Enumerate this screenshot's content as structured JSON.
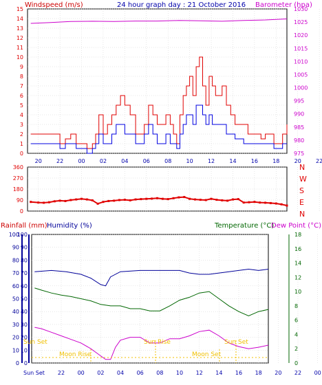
{
  "header": {
    "left_label": "Windspeed (m/s)",
    "center_title": "24 hour graph day : 21 October 2016",
    "right_label": "Barometer (hpa)"
  },
  "colors": {
    "wind_gust": "#e00000",
    "wind_avg": "#0000e0",
    "barometer": "#cc00cc",
    "direction": "#e00000",
    "humidity": "#000099",
    "temperature": "#006600",
    "dewpoint": "#cc00cc",
    "rainfall": "#cc0000",
    "sun_moon": "#f0c000",
    "axis": "#0000aa",
    "grid": "#cfcfcf"
  },
  "time_ticks": [
    "20",
    "22",
    "00",
    "02",
    "04",
    "06",
    "08",
    "10",
    "12",
    "14",
    "16",
    "18",
    "20",
    "22",
    "00"
  ],
  "chart_data": [
    {
      "type": "line",
      "x_unit": "hour",
      "x_range": [
        19,
        43
      ],
      "ylim_left": [
        0,
        15
      ],
      "ylim_right": [
        975,
        1030
      ],
      "yticks_left": [
        "0",
        "1",
        "2",
        "3",
        "4",
        "5",
        "6",
        "7",
        "8",
        "9",
        "10",
        "11",
        "12",
        "13",
        "14",
        "15"
      ],
      "yticks_right": [
        "975",
        "980",
        "985",
        "990",
        "995",
        "1000",
        "1005",
        "1010",
        "1015",
        "1020",
        "1025",
        "1030"
      ],
      "grid": true,
      "series": [
        {
          "name": "Windspeed (m/s)",
          "color": "#e00000",
          "x": [
            19.3,
            20,
            20.8,
            21.5,
            22,
            22.5,
            23,
            23.5,
            24,
            24.5,
            25,
            25.3,
            25.6,
            26,
            26.4,
            26.8,
            27.2,
            27.6,
            28,
            28.5,
            29,
            29.4,
            29.8,
            30.2,
            30.6,
            31,
            31.4,
            31.8,
            32.2,
            32.5,
            32.8,
            33.1,
            33.4,
            33.7,
            34,
            34.3,
            34.6,
            34.9,
            35.2,
            35.5,
            35.8,
            36.1,
            36.4,
            36.7,
            37,
            37.4,
            37.8,
            38.2,
            38.6,
            39,
            39.4,
            39.8,
            40.2,
            40.6,
            41,
            41.4,
            41.8,
            42.2,
            42.6,
            43
          ],
          "values": [
            2,
            2,
            2,
            2,
            1,
            1.5,
            2,
            1,
            1,
            0.5,
            1,
            2,
            4,
            2,
            3,
            4,
            5,
            6,
            5,
            4,
            2,
            2,
            3,
            5,
            4,
            3,
            3,
            4,
            3,
            2,
            1,
            4,
            6,
            7,
            8,
            6,
            9,
            10,
            7,
            5,
            8,
            7,
            6,
            6,
            7,
            5,
            4,
            3,
            3,
            3,
            2,
            2,
            2,
            1.5,
            2,
            2,
            1,
            1,
            2,
            3
          ]
        },
        {
          "name": "Wind average",
          "color": "#0000e0",
          "x": [
            19.3,
            20,
            20.8,
            21.5,
            22,
            22.5,
            23,
            23.5,
            24,
            24.5,
            25,
            25.3,
            25.6,
            26,
            26.4,
            26.8,
            27.2,
            27.6,
            28,
            28.5,
            29,
            29.4,
            29.8,
            30.2,
            30.6,
            31,
            31.4,
            31.8,
            32.2,
            32.5,
            32.8,
            33.1,
            33.4,
            33.7,
            34,
            34.3,
            34.6,
            34.9,
            35.2,
            35.5,
            35.8,
            36.1,
            36.4,
            36.7,
            37,
            37.4,
            37.8,
            38.2,
            38.6,
            39,
            39.4,
            39.8,
            40.2,
            40.6,
            41,
            41.4,
            41.8,
            42.2,
            42.6,
            43
          ],
          "values": [
            1,
            1,
            1,
            1,
            0.5,
            1,
            1,
            0.5,
            0.5,
            0,
            0.5,
            1,
            2,
            1,
            1,
            2,
            3,
            3,
            2,
            2,
            1,
            1,
            2,
            3,
            2,
            1,
            1,
            2,
            1,
            1,
            0.5,
            2,
            3,
            4,
            4,
            3,
            5,
            5,
            4,
            3,
            4,
            3,
            3,
            3,
            3,
            2,
            2,
            1.5,
            1.5,
            1,
            1,
            1,
            1,
            1,
            1,
            1,
            0.5,
            0.5,
            1,
            1
          ]
        },
        {
          "name": "Barometer (hpa)",
          "color": "#cc00cc",
          "axis": "right",
          "x": [
            19.3,
            21,
            23,
            25,
            27,
            29,
            31,
            33,
            35,
            37,
            39,
            41,
            43
          ],
          "values": [
            1024.5,
            1024.8,
            1025.2,
            1025.3,
            1025.2,
            1025.4,
            1025.4,
            1025.6,
            1025.5,
            1025.3,
            1025.6,
            1025.8,
            1026.2
          ]
        }
      ]
    },
    {
      "type": "scatter",
      "x_unit": "hour",
      "x_range": [
        19,
        43
      ],
      "ylim": [
        0,
        360
      ],
      "yticks": [
        "0",
        "90",
        "180",
        "270",
        "360"
      ],
      "compass_labels": [
        "N",
        "W",
        "S",
        "E",
        "N"
      ],
      "grid": true,
      "series": [
        {
          "name": "Wind direction",
          "color": "#e00000",
          "x": [
            19.3,
            20,
            20.5,
            21,
            21.5,
            22,
            22.5,
            23,
            23.5,
            24,
            24.5,
            25,
            25.5,
            26,
            26.5,
            27,
            27.5,
            28,
            28.5,
            29,
            29.5,
            30,
            30.5,
            31,
            31.5,
            32,
            32.5,
            33,
            33.5,
            34,
            34.5,
            35,
            35.5,
            36,
            36.5,
            37,
            37.5,
            38,
            38.5,
            39,
            39.5,
            40,
            40.5,
            41,
            41.5,
            42,
            42.5,
            43
          ],
          "values": [
            75,
            70,
            68,
            72,
            80,
            85,
            82,
            90,
            95,
            100,
            95,
            88,
            60,
            75,
            82,
            85,
            90,
            92,
            88,
            95,
            98,
            100,
            102,
            105,
            100,
            98,
            105,
            112,
            115,
            100,
            95,
            92,
            90,
            100,
            92,
            88,
            85,
            95,
            98,
            70,
            72,
            75,
            70,
            68,
            65,
            62,
            55,
            45
          ]
        }
      ]
    },
    {
      "type": "line",
      "x_unit": "hour",
      "x_range": [
        19,
        43
      ],
      "ylim_left": [
        0,
        100
      ],
      "ylim_right": [
        0,
        18
      ],
      "yticks_left": [
        "0",
        "10",
        "20",
        "30",
        "40",
        "50",
        "60",
        "70",
        "80",
        "90",
        "100"
      ],
      "yticks_right": [
        "0",
        "2",
        "4",
        "6",
        "8",
        "10",
        "12",
        "14",
        "16",
        "18"
      ],
      "grid": true,
      "left_label_1": "Rainfall (mm)",
      "left_label_2": "Humidity (%)",
      "right_label_1": "Temperature (°C)",
      "right_label_2": "Dew Point (°C)",
      "series": [
        {
          "name": "Humidity (%)",
          "color": "#000099",
          "x": [
            19.3,
            21,
            22.5,
            24,
            25,
            26,
            26.5,
            27,
            28,
            30,
            32,
            34,
            35,
            36,
            37,
            38,
            39,
            40,
            41,
            42,
            43
          ],
          "values": [
            71,
            72,
            71,
            69,
            66,
            61,
            60,
            67,
            71,
            72,
            72,
            72,
            70,
            69,
            69,
            70,
            71,
            72,
            73,
            72,
            73
          ],
          "axis": "left"
        },
        {
          "name": "Temperature (°C)",
          "color": "#006600",
          "x": [
            19.3,
            20,
            21,
            22,
            23,
            24,
            25,
            26,
            27,
            28,
            29,
            30,
            31,
            32,
            33,
            34,
            35,
            36,
            37,
            38,
            39,
            40,
            41,
            42,
            43
          ],
          "values": [
            10.5,
            10.2,
            9.8,
            9.5,
            9.3,
            9.0,
            8.7,
            8.2,
            8.0,
            8.0,
            7.6,
            7.6,
            7.3,
            7.3,
            8.0,
            8.8,
            9.2,
            9.8,
            10.0,
            9.0,
            8.0,
            7.2,
            6.6,
            7.2,
            7.5
          ],
          "axis": "right"
        },
        {
          "name": "Dew Point (°C)",
          "color": "#cc00cc",
          "x": [
            19.3,
            20,
            21,
            22,
            23,
            24,
            25,
            26,
            26.5,
            27,
            27.5,
            28,
            29,
            30,
            31,
            32,
            33,
            34,
            35,
            36,
            37,
            38,
            39,
            40,
            41,
            42,
            43
          ],
          "values": [
            5.0,
            4.8,
            4.3,
            3.8,
            3.3,
            2.8,
            2.0,
            1.0,
            0.5,
            0.5,
            2.2,
            3.2,
            3.6,
            3.6,
            2.8,
            2.8,
            3.4,
            3.4,
            3.8,
            4.4,
            4.6,
            3.8,
            2.8,
            2.3,
            2.0,
            2.2,
            2.5
          ],
          "axis": "right"
        }
      ]
    }
  ],
  "sun_moon": {
    "sun_set_left": "Sun Set",
    "moon_rise": "Moon Rise",
    "sun_rise": "Sun Rise",
    "moon_set": "Moon Set",
    "sun_set_right": "Sun Set",
    "sun_set_axis": "Sun Set"
  }
}
